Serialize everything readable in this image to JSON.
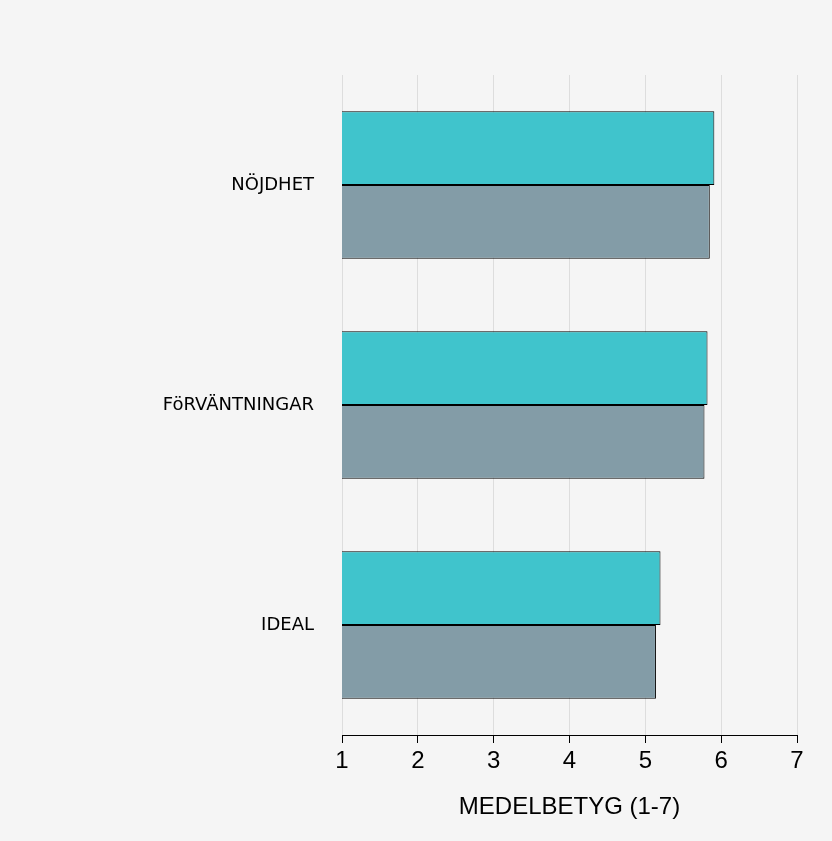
{
  "chart_data": {
    "type": "bar",
    "orientation": "horizontal",
    "categories": [
      "NÖJDHET",
      "FöRVÄNTNINGAR",
      "IDEAL"
    ],
    "series": [
      {
        "color": "#40c4cc",
        "values": [
          5.91,
          5.82,
          5.2
        ]
      },
      {
        "color": "#839ca7",
        "values": [
          5.85,
          5.78,
          5.14
        ]
      }
    ],
    "x_label": "MEDELBETYG (1-7)",
    "xlim": [
      1,
      7
    ],
    "xticks": [
      1,
      2,
      3,
      4,
      5,
      6,
      7
    ],
    "grid": true
  }
}
